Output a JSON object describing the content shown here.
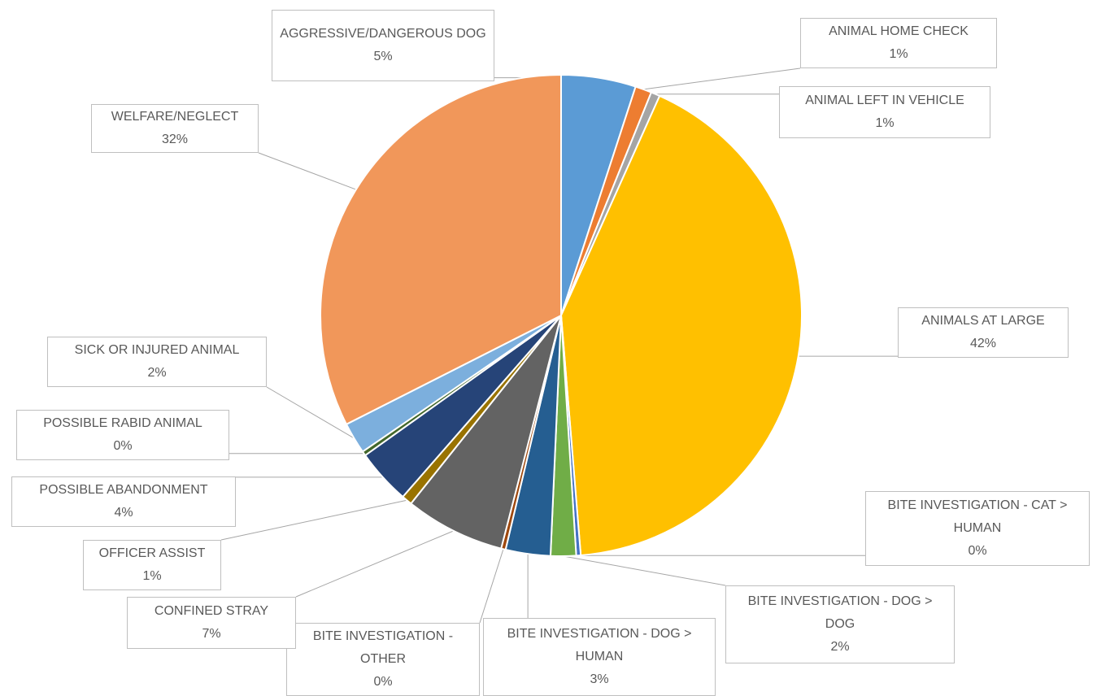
{
  "chart_data": {
    "type": "pie",
    "categories": [
      "AGGRESSIVE/DANGEROUS DOG",
      "ANIMAL HOME CHECK",
      "ANIMAL LEFT IN VEHICLE",
      "ANIMALS AT LARGE",
      "BITE INVESTIGATION - CAT > HUMAN",
      "BITE INVESTIGATION - DOG > DOG",
      "BITE INVESTIGATION - DOG > HUMAN",
      "BITE INVESTIGATION - OTHER",
      "CONFINED STRAY",
      "OFFICER ASSIST",
      "POSSIBLE ABANDONMENT",
      "POSSIBLE RABID ANIMAL",
      "SICK OR INJURED ANIMAL",
      "WELFARE/NEGLECT"
    ],
    "values": [
      5.0,
      1.1,
      0.6,
      41.9,
      0.3,
      1.7,
      3.0,
      0.3,
      6.7,
      0.7,
      3.7,
      0.3,
      2.1,
      32.4
    ],
    "value_labels": [
      "5%",
      "1%",
      "1%",
      "42%",
      "0%",
      "2%",
      "3%",
      "0%",
      "7%",
      "1%",
      "4%",
      "0%",
      "2%",
      "32%"
    ],
    "colors": [
      "#5b9bd5",
      "#ed7d31",
      "#a5a5a5",
      "#ffc000",
      "#4472c4",
      "#70ad47",
      "#255e91",
      "#9e480e",
      "#636363",
      "#997300",
      "#264478",
      "#43682b",
      "#7cafdd",
      "#f1975a"
    ]
  }
}
